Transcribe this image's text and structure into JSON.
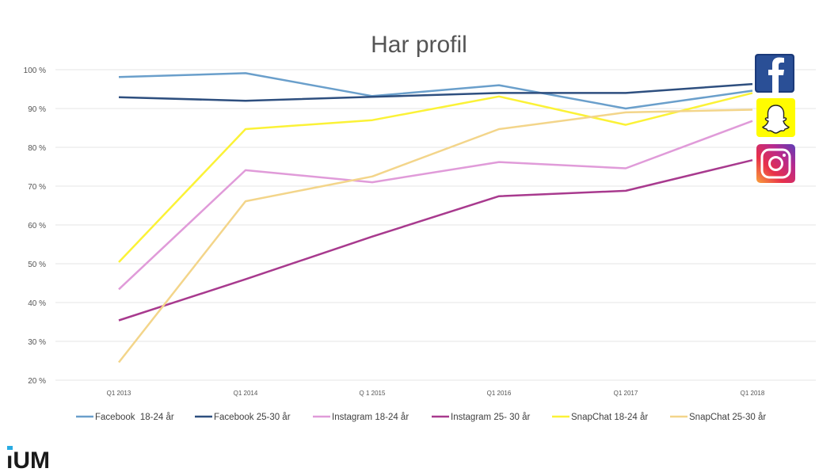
{
  "logo": {
    "text": "iUM"
  },
  "icons": [
    "facebook-icon",
    "snapchat-icon",
    "instagram-icon"
  ],
  "chart_data": {
    "type": "line",
    "title": "Har profil",
    "xlabel": "",
    "ylabel": "",
    "ylim": [
      20,
      100
    ],
    "yticks": [
      100,
      90,
      80,
      70,
      60,
      50,
      40,
      30,
      20
    ],
    "ytick_labels": [
      "100 %",
      "90 %",
      "80 %",
      "70 %",
      "60 %",
      "50 %",
      "40 %",
      "30 %",
      "20 %"
    ],
    "categories": [
      "Q1 2013",
      "Q1 2014",
      "Q 1 2015",
      "Q1 2016",
      "Q1 2017",
      "Q1 2018"
    ],
    "grid": true,
    "legend_position": "bottom",
    "series": [
      {
        "name": "Facebook  18-24 år",
        "color": "#6a9fcb",
        "values": [
          98.1,
          99.1,
          93.2,
          96.0,
          90.0,
          94.6
        ]
      },
      {
        "name": "Facebook 25-30 år",
        "color": "#2e4f7f",
        "values": [
          92.9,
          92.0,
          93.0,
          94.0,
          94.0,
          96.3
        ]
      },
      {
        "name": "Instagram 18-24 år",
        "color": "#e09bd9",
        "values": [
          43.4,
          74.1,
          71.0,
          76.2,
          74.6,
          86.8
        ]
      },
      {
        "name": "Instagram 25- 30 år",
        "color": "#a83a8e",
        "values": [
          35.4,
          46.0,
          57.0,
          67.4,
          68.8,
          76.7
        ]
      },
      {
        "name": "SnapChat 18-24 år",
        "color": "#fbf237",
        "values": [
          50.4,
          84.7,
          87.0,
          93.1,
          85.8,
          94.0
        ]
      },
      {
        "name": "SnapChat 25-30 år",
        "color": "#f3d58a",
        "values": [
          24.6,
          66.1,
          72.5,
          84.7,
          89.0,
          89.7
        ]
      }
    ]
  }
}
